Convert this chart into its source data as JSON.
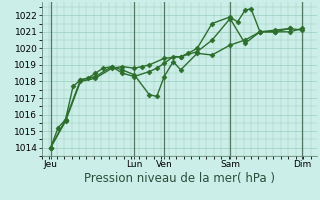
{
  "background_color": "#cceee8",
  "grid_color": "#99ccbb",
  "line_color": "#2d6e2d",
  "marker_color": "#2d6e2d",
  "vline_color": "#557766",
  "ylim": [
    1013.5,
    1022.8
  ],
  "yticks": [
    1014,
    1015,
    1016,
    1017,
    1018,
    1019,
    1020,
    1021,
    1022
  ],
  "xlabel": "Pression niveau de la mer( hPa )",
  "xlabel_fontsize": 8.5,
  "tick_fontsize": 6.5,
  "xlim": [
    0,
    9.2
  ],
  "day_labels": [
    "Jeu",
    "Lun",
    "Ven",
    "Sam",
    "Dim"
  ],
  "day_positions": [
    0.3,
    3.1,
    4.1,
    6.3,
    8.7
  ],
  "vline_positions": [
    0.3,
    3.1,
    4.1,
    6.3,
    8.7
  ],
  "series": [
    {
      "x": [
        0.3,
        0.55,
        0.8,
        1.05,
        1.3,
        1.55,
        1.8,
        2.05,
        2.35,
        2.7,
        3.1,
        3.6,
        3.85,
        4.1,
        4.4,
        4.65,
        4.9,
        5.2,
        5.7,
        6.3,
        6.55,
        6.8,
        7.0,
        7.3,
        7.8,
        8.3,
        8.7
      ],
      "y": [
        1014.0,
        1015.2,
        1015.7,
        1017.7,
        1018.1,
        1018.2,
        1018.5,
        1018.8,
        1018.9,
        1018.5,
        1018.3,
        1018.6,
        1018.8,
        1019.1,
        1019.5,
        1019.5,
        1019.7,
        1020.0,
        1021.5,
        1021.9,
        1021.6,
        1022.3,
        1022.4,
        1021.0,
        1021.1,
        1021.2,
        1021.1
      ],
      "marker": "D",
      "markersize": 2.5,
      "linewidth": 1.0
    },
    {
      "x": [
        0.3,
        0.8,
        1.3,
        1.8,
        2.35,
        2.7,
        3.1,
        3.6,
        3.85,
        4.1,
        4.4,
        4.65,
        5.2,
        5.7,
        6.3,
        6.8,
        7.3,
        7.8,
        8.3
      ],
      "y": [
        1014.0,
        1015.7,
        1018.1,
        1018.3,
        1018.9,
        1018.7,
        1018.4,
        1017.2,
        1017.1,
        1018.3,
        1019.2,
        1018.7,
        1019.7,
        1019.6,
        1020.2,
        1020.5,
        1021.0,
        1021.0,
        1021.2
      ],
      "marker": "D",
      "markersize": 2.5,
      "linewidth": 1.0
    },
    {
      "x": [
        0.3,
        0.8,
        1.3,
        1.8,
        2.35,
        2.7,
        3.1,
        3.35,
        3.6,
        4.1,
        4.65,
        5.2,
        5.7,
        6.3,
        6.8,
        7.3,
        7.8,
        8.3,
        8.7
      ],
      "y": [
        1014.0,
        1015.6,
        1018.0,
        1018.2,
        1018.8,
        1018.9,
        1018.8,
        1018.9,
        1019.0,
        1019.4,
        1019.5,
        1019.8,
        1020.5,
        1021.8,
        1020.3,
        1021.0,
        1021.0,
        1021.0,
        1021.2
      ],
      "marker": "D",
      "markersize": 2.5,
      "linewidth": 1.0
    }
  ]
}
